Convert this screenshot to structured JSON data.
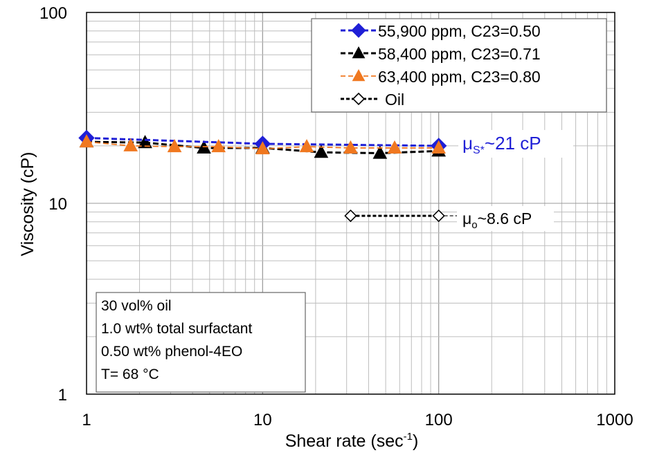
{
  "chart_data": {
    "type": "scatter",
    "xlabel": "Shear rate (sec",
    "xlabel_sup": "-1",
    "xlabel_end": ")",
    "ylabel": "Viscosity (cP)",
    "x_scale": "log",
    "y_scale": "log",
    "xlim": [
      1,
      1000
    ],
    "ylim": [
      1,
      100
    ],
    "x_ticks": [
      "1",
      "10",
      "100",
      "1000"
    ],
    "y_ticks": [
      "1",
      "10",
      "100"
    ],
    "grid": true,
    "legend_position": "top-right",
    "series": [
      {
        "name": "55,900 ppm, C23=0.50",
        "marker": "diamond-filled",
        "color": "#1f1fd6",
        "line": "dashed",
        "x": [
          1,
          10,
          100
        ],
        "y": [
          22.0,
          20.5,
          20.0
        ]
      },
      {
        "name": "58,400 ppm, C23=0.71",
        "marker": "triangle-filled",
        "color": "#000000",
        "line": "dashed",
        "x": [
          1,
          2.15,
          4.64,
          10,
          21.5,
          46.4,
          100
        ],
        "y": [
          21.0,
          20.8,
          19.5,
          19.5,
          18.5,
          18.3,
          18.8
        ]
      },
      {
        "name": "63,400 ppm, C23=0.80",
        "marker": "triangle-filled",
        "color": "#f07820",
        "line": "dashed",
        "x": [
          1,
          1.78,
          3.16,
          5.62,
          10,
          17.8,
          31.6,
          56.2,
          100
        ],
        "y": [
          21.0,
          20.0,
          19.8,
          19.8,
          19.3,
          19.8,
          19.5,
          19.5,
          19.5
        ]
      },
      {
        "name": "Oil",
        "marker": "diamond-open",
        "color": "#000000",
        "line": "dashed",
        "x": [
          31.6,
          100
        ],
        "y": [
          8.6,
          8.6
        ]
      }
    ],
    "annotations": {
      "mu_s": {
        "symbol": "μ",
        "sub": "S*",
        "text": "~21 cP",
        "color": "#1f1fd6"
      },
      "mu_o": {
        "symbol": "μ",
        "sub": "o",
        "text": "~8.6 cP",
        "color": "#000000"
      }
    },
    "info_box": [
      "30 vol% oil",
      "1.0 wt% total surfactant",
      "0.50 wt% phenol-4EO",
      "T= 68 °C"
    ]
  }
}
